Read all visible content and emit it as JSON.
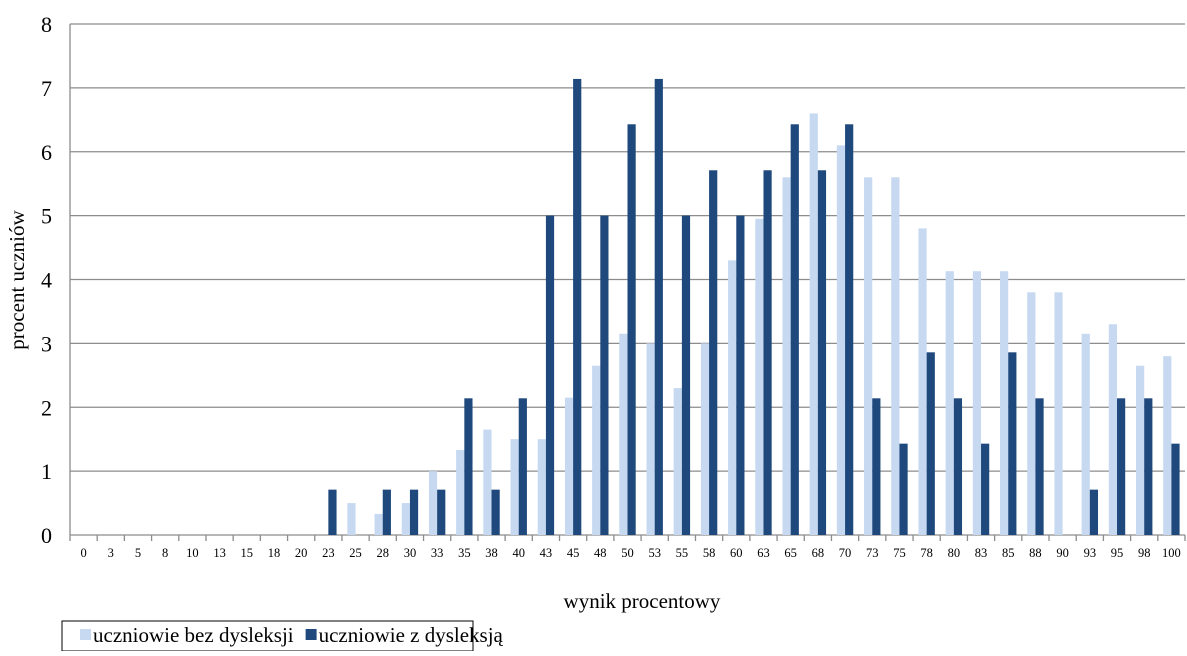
{
  "chart_data": {
    "type": "bar",
    "x_label": "wynik procentowy",
    "y_label": "procent uczniów",
    "categories": [
      "0",
      "3",
      "5",
      "8",
      "10",
      "13",
      "15",
      "18",
      "20",
      "23",
      "25",
      "28",
      "30",
      "33",
      "35",
      "38",
      "40",
      "43",
      "45",
      "48",
      "50",
      "53",
      "55",
      "58",
      "60",
      "63",
      "65",
      "68",
      "70",
      "73",
      "75",
      "78",
      "80",
      "83",
      "85",
      "88",
      "90",
      "93",
      "95",
      "98",
      "100"
    ],
    "series": [
      {
        "name": "uczniowie bez dysleksji",
        "color": "#c6d9f1",
        "values": [
          0,
          0,
          0,
          0,
          0,
          0,
          0,
          0,
          0,
          0,
          0.5,
          0.33,
          0.5,
          1.0,
          1.33,
          1.65,
          1.5,
          1.5,
          2.15,
          2.65,
          3.15,
          3.0,
          2.3,
          3.0,
          4.3,
          4.95,
          5.6,
          6.6,
          6.1,
          5.6,
          5.6,
          4.8,
          4.13,
          4.13,
          4.13,
          3.8,
          3.8,
          3.15,
          3.3,
          2.65,
          2.8
        ]
      },
      {
        "name": "uczniowie z dysleksją",
        "color": "#1f497d",
        "values": [
          0,
          0,
          0,
          0,
          0,
          0,
          0,
          0,
          0,
          0.71,
          0,
          0.71,
          0.71,
          0.71,
          2.14,
          0.71,
          2.14,
          5.0,
          7.14,
          5.0,
          6.43,
          7.14,
          5.0,
          5.71,
          5.0,
          5.71,
          6.43,
          5.71,
          6.43,
          2.14,
          1.43,
          2.86,
          2.14,
          1.43,
          2.86,
          2.14,
          0,
          0.71,
          2.14,
          2.14,
          1.43
        ]
      }
    ],
    "ylim": [
      0,
      8
    ],
    "yticks": [
      0,
      1,
      2,
      3,
      4,
      5,
      6,
      7,
      8
    ],
    "grid": true
  }
}
